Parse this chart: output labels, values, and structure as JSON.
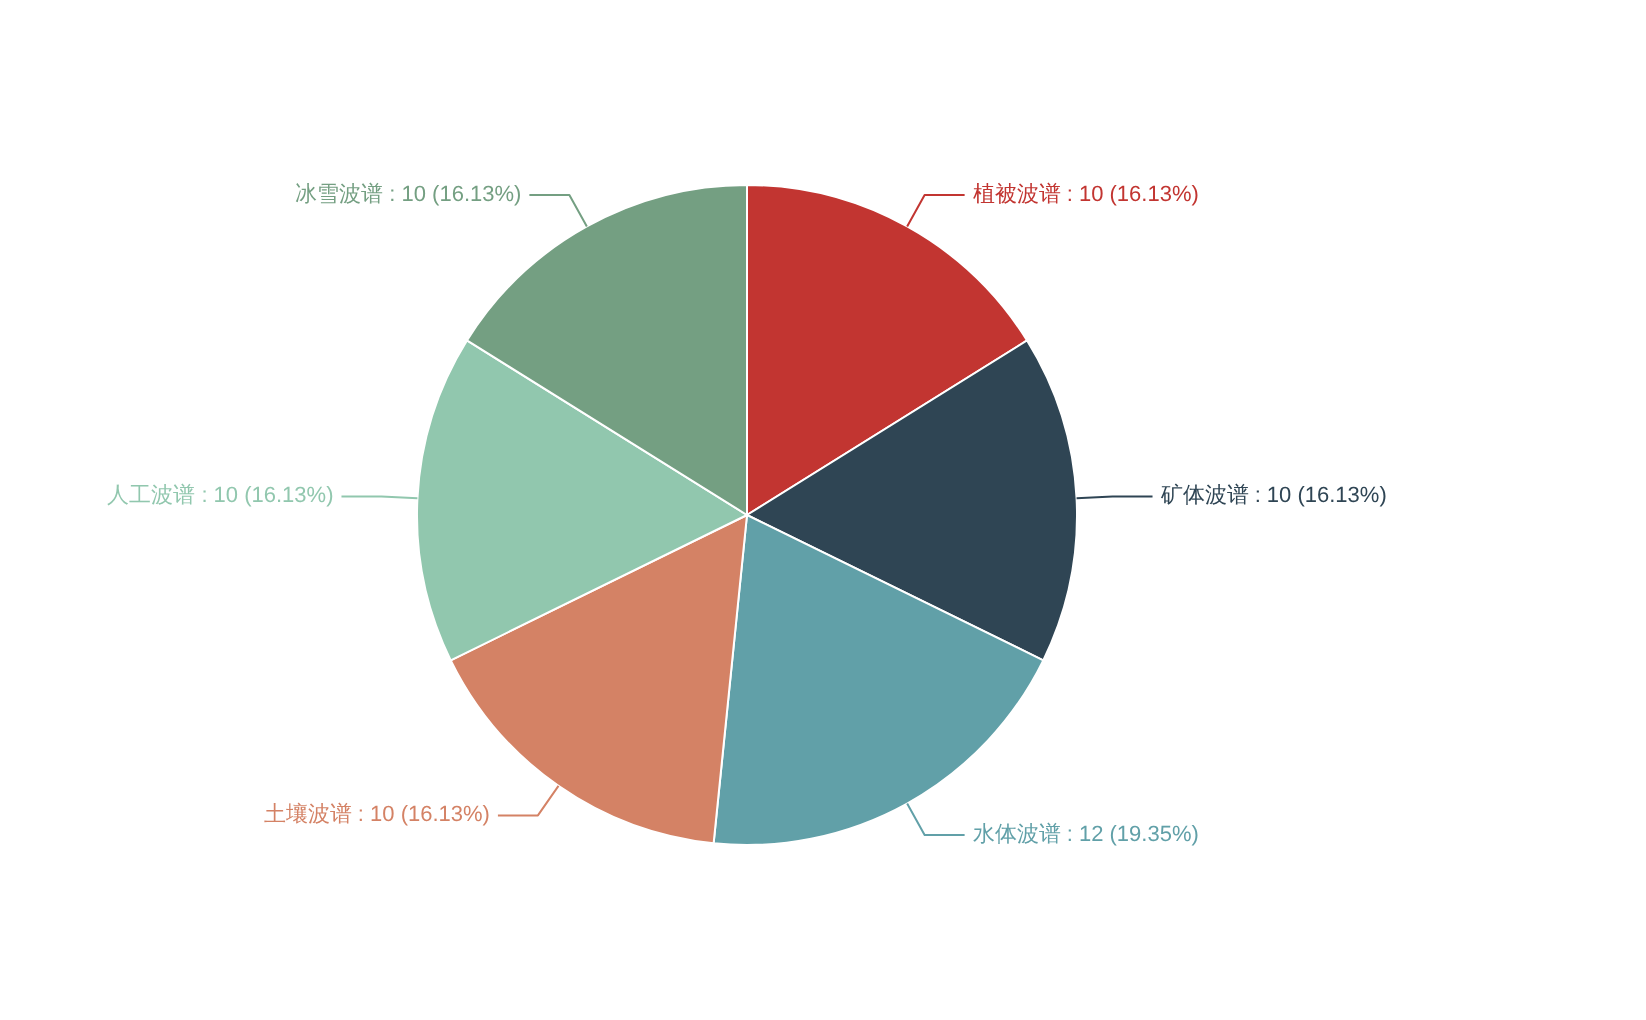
{
  "chart_data": {
    "type": "pie",
    "categories": [
      "植被波谱",
      "矿体波谱",
      "水体波谱",
      "土壤波谱",
      "人工波谱",
      "冰雪波谱"
    ],
    "values": [
      10,
      10,
      12,
      10,
      10,
      10
    ],
    "value_labels": [
      "10 (16.13%)",
      "10 (16.13%)",
      "12 (19.35%)",
      "10 (16.13%)",
      "10 (16.13%)",
      "10 (16.13%)"
    ],
    "colors": [
      "#c23531",
      "#2f4554",
      "#61a0a8",
      "#d48265",
      "#91c7ae",
      "#749f82"
    ]
  }
}
